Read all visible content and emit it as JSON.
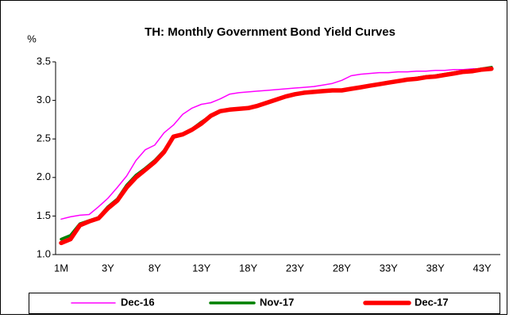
{
  "chart_data": {
    "type": "line",
    "title": "TH: Monthly Government Bond Yield Curves",
    "y_label": "%",
    "categories": [
      "1M",
      null,
      null,
      null,
      null,
      "3Y",
      null,
      null,
      null,
      null,
      "8Y",
      null,
      null,
      null,
      null,
      "13Y",
      null,
      null,
      null,
      null,
      "18Y",
      null,
      null,
      null,
      null,
      "23Y",
      null,
      null,
      null,
      null,
      "28Y",
      null,
      null,
      null,
      null,
      "33Y",
      null,
      null,
      null,
      null,
      "38Y",
      null,
      null,
      null,
      null,
      "43Y",
      null
    ],
    "series": [
      {
        "name": "Dec-16",
        "color": "#ff00ff",
        "values": [
          1.46,
          1.49,
          1.51,
          1.52,
          1.62,
          1.73,
          1.87,
          2.02,
          2.22,
          2.36,
          2.42,
          2.58,
          2.68,
          2.82,
          2.9,
          2.95,
          2.97,
          3.02,
          3.08,
          3.1,
          3.11,
          3.12,
          3.13,
          3.14,
          3.15,
          3.16,
          3.17,
          3.18,
          3.2,
          3.22,
          3.26,
          3.32,
          3.34,
          3.35,
          3.36,
          3.36,
          3.37,
          3.37,
          3.38,
          3.38,
          3.39,
          3.39,
          3.4,
          3.4,
          3.41,
          3.41,
          3.42
        ]
      },
      {
        "name": "Nov-17",
        "color": "#008000",
        "values": [
          1.2,
          1.25,
          1.4,
          1.44,
          1.48,
          1.62,
          1.72,
          1.9,
          2.03,
          2.12,
          2.22,
          2.35,
          2.53,
          2.56,
          2.63,
          2.72,
          2.8,
          2.86,
          2.88,
          2.89,
          2.9,
          2.93,
          2.97,
          3.01,
          3.05,
          3.08,
          3.1,
          3.11,
          3.12,
          3.13,
          3.13,
          3.15,
          3.17,
          3.19,
          3.21,
          3.23,
          3.25,
          3.27,
          3.29,
          3.31,
          3.32,
          3.34,
          3.36,
          3.38,
          3.39,
          3.41,
          3.43
        ]
      },
      {
        "name": "Dec-17",
        "color": "#ff0000",
        "values": [
          1.15,
          1.2,
          1.38,
          1.43,
          1.47,
          1.6,
          1.7,
          1.87,
          2.0,
          2.1,
          2.2,
          2.33,
          2.53,
          2.56,
          2.62,
          2.7,
          2.8,
          2.86,
          2.88,
          2.89,
          2.9,
          2.93,
          2.97,
          3.01,
          3.05,
          3.08,
          3.1,
          3.11,
          3.12,
          3.13,
          3.13,
          3.15,
          3.17,
          3.19,
          3.21,
          3.23,
          3.25,
          3.27,
          3.28,
          3.3,
          3.31,
          3.33,
          3.35,
          3.37,
          3.38,
          3.4,
          3.41
        ]
      }
    ],
    "ylim": [
      1.0,
      3.5
    ],
    "yticks": [
      {
        "value": 1.0,
        "label": "1.0"
      },
      1.5,
      {
        "value": 2.0,
        "label": "2.0"
      },
      2.5,
      {
        "value": 3.0,
        "label": "3.0"
      },
      3.5
    ],
    "grid": false,
    "legend": "bottom"
  }
}
